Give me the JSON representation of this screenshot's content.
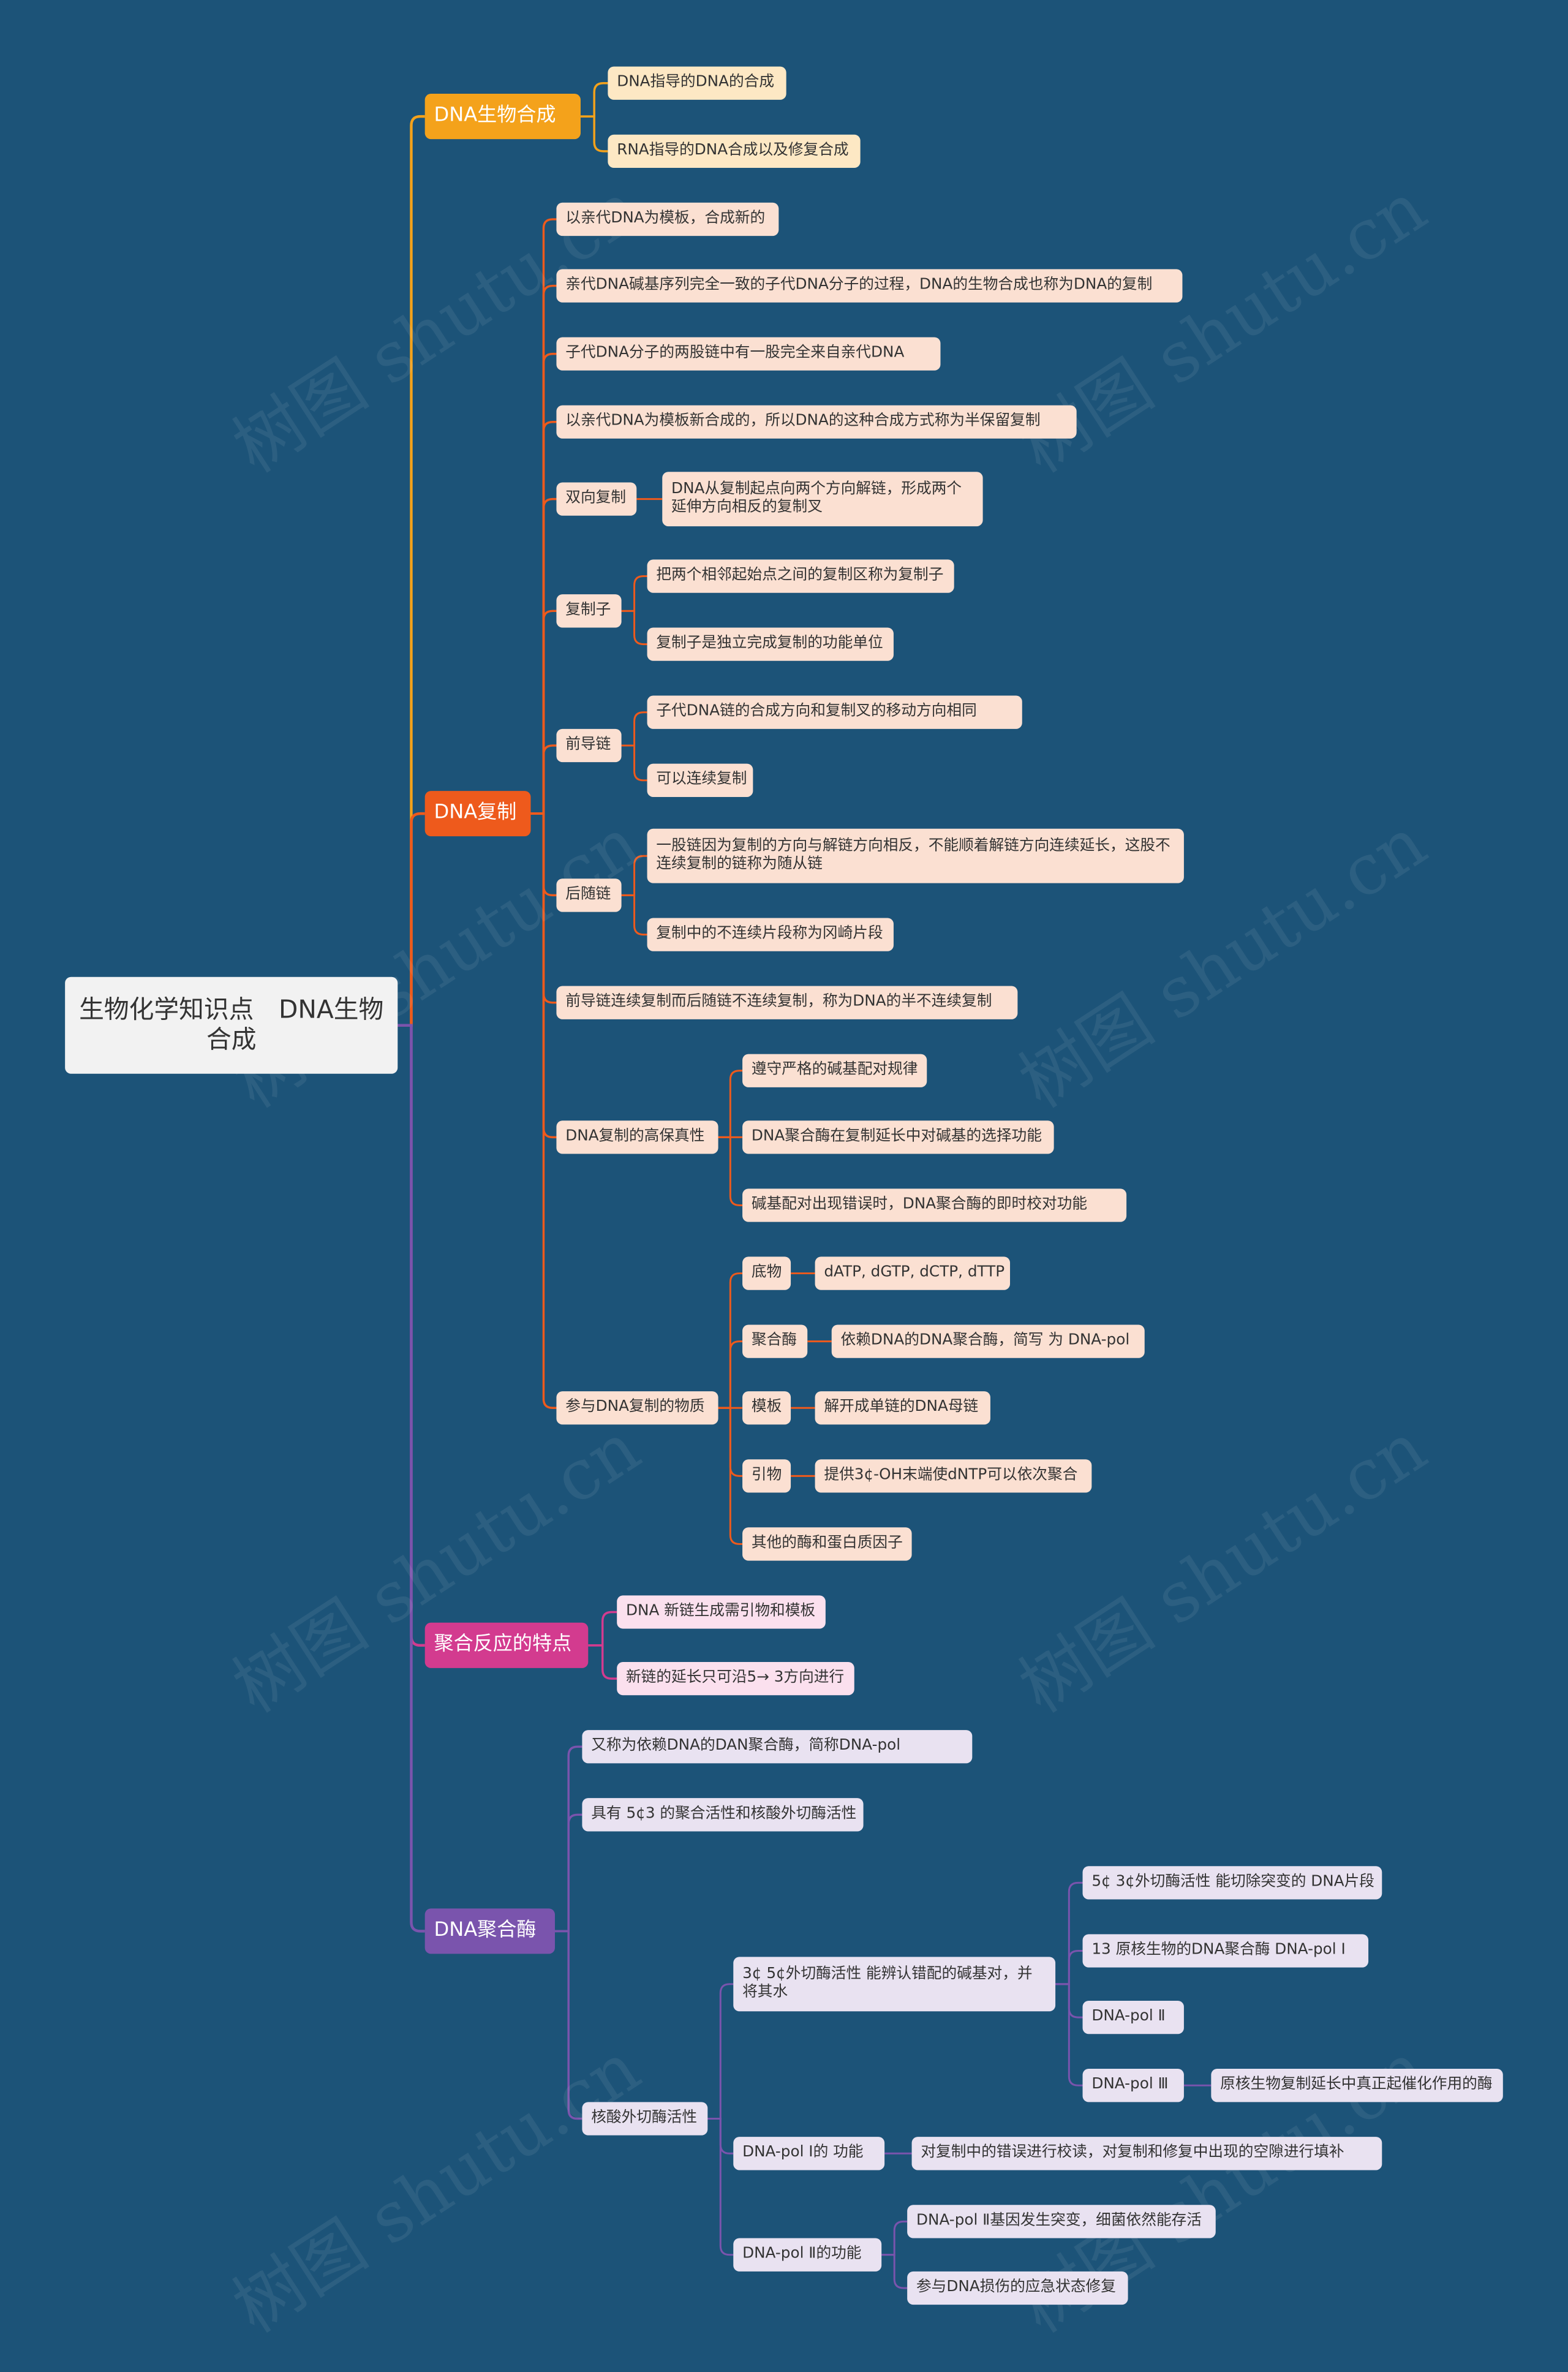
{
  "root": {
    "label": "生物化学知识点　DNA生物合成"
  },
  "watermark": "树图 shutu.cn",
  "colors": {
    "orange": "#f4a21b",
    "red": "#ee5a1c",
    "pink": "#d33b8f",
    "violet": "#7a54ad",
    "background": "#1c5378"
  },
  "branches": [
    {
      "label": "DNA生物合成",
      "children": [
        {
          "label": "DNA指导的DNA的合成"
        },
        {
          "label": "RNA指导的DNA合成以及修复合成"
        }
      ]
    },
    {
      "label": "DNA复制",
      "children": [
        {
          "label": "以亲代DNA为模板，合成新的"
        },
        {
          "label": "亲代DNA碱基序列完全一致的子代DNA分子的过程，DNA的生物合成也称为DNA的复制"
        },
        {
          "label": "子代DNA分子的两股链中有一股完全来自亲代DNA"
        },
        {
          "label": "以亲代DNA为模板新合成的，所以DNA的这种合成方式称为半保留复制"
        },
        {
          "label": "双向复制",
          "children": [
            {
              "label": "DNA从复制起点向两个方向解链，形成两个延伸方向相反的复制叉"
            }
          ]
        },
        {
          "label": "复制子",
          "children": [
            {
              "label": "把两个相邻起始点之间的复制区称为复制子"
            },
            {
              "label": "复制子是独立完成复制的功能单位"
            }
          ]
        },
        {
          "label": "前导链",
          "children": [
            {
              "label": "子代DNA链的合成方向和复制叉的移动方向相同"
            },
            {
              "label": "可以连续复制"
            }
          ]
        },
        {
          "label": "后随链",
          "children": [
            {
              "label": "一股链因为复制的方向与解链方向相反，不能顺着解链方向连续延长，这股不连续复制的链称为随从链"
            },
            {
              "label": "复制中的不连续片段称为冈崎片段"
            }
          ]
        },
        {
          "label": "前导链连续复制而后随链不连续复制，称为DNA的半不连续复制"
        },
        {
          "label": "DNA复制的高保真性",
          "children": [
            {
              "label": "遵守严格的碱基配对规律"
            },
            {
              "label": "DNA聚合酶在复制延长中对碱基的选择功能"
            },
            {
              "label": "碱基配对出现错误时，DNA聚合酶的即时校对功能"
            }
          ]
        },
        {
          "label": "参与DNA复制的物质",
          "children": [
            {
              "label": "底物",
              "children": [
                {
                  "label": "dATP, dGTP, dCTP, dTTP"
                }
              ]
            },
            {
              "label": "聚合酶",
              "children": [
                {
                  "label": "依赖DNA的DNA聚合酶，简写 为 DNA-pol"
                }
              ]
            },
            {
              "label": "模板",
              "children": [
                {
                  "label": "解开成单链的DNA母链"
                }
              ]
            },
            {
              "label": "引物",
              "children": [
                {
                  "label": "提供3¢-OH末端使dNTP可以依次聚合"
                }
              ]
            },
            {
              "label": "其他的酶和蛋白质因子"
            }
          ]
        }
      ]
    },
    {
      "label": "聚合反应的特点",
      "children": [
        {
          "label": "DNA 新链生成需引物和模板"
        },
        {
          "label": "新链的延长只可沿5→ 3方向进行"
        }
      ]
    },
    {
      "label": "DNA聚合酶",
      "children": [
        {
          "label": "又称为依赖DNA的DAN聚合酶，简称DNA-pol"
        },
        {
          "label": "具有 5¢3 的聚合活性和核酸外切酶活性"
        },
        {
          "label": "核酸外切酶活性",
          "children": [
            {
              "label": "3¢ 5¢外切酶活性 能辨认错配的碱基对，并将其水",
              "children": [
                {
                  "label": "5¢ 3¢外切酶活性 能切除突变的 DNA片段"
                },
                {
                  "label": "13 原核生物的DNA聚合酶 DNA-pol Ⅰ"
                },
                {
                  "label": "DNA-pol Ⅱ"
                },
                {
                  "label": "DNA-pol Ⅲ",
                  "children": [
                    {
                      "label": "原核生物复制延长中真正起催化作用的酶"
                    }
                  ]
                }
              ]
            },
            {
              "label": "DNA-pol Ⅰ的 功能",
              "children": [
                {
                  "label": "对复制中的错误进行校读，对复制和修复中出现的空隙进行填补"
                }
              ]
            },
            {
              "label": "DNA-pol Ⅱ的功能",
              "children": [
                {
                  "label": "DNA-pol Ⅱ基因发生突变，细菌依然能存活"
                },
                {
                  "label": "参与DNA损伤的应急状态修复"
                }
              ]
            }
          ]
        }
      ]
    }
  ]
}
